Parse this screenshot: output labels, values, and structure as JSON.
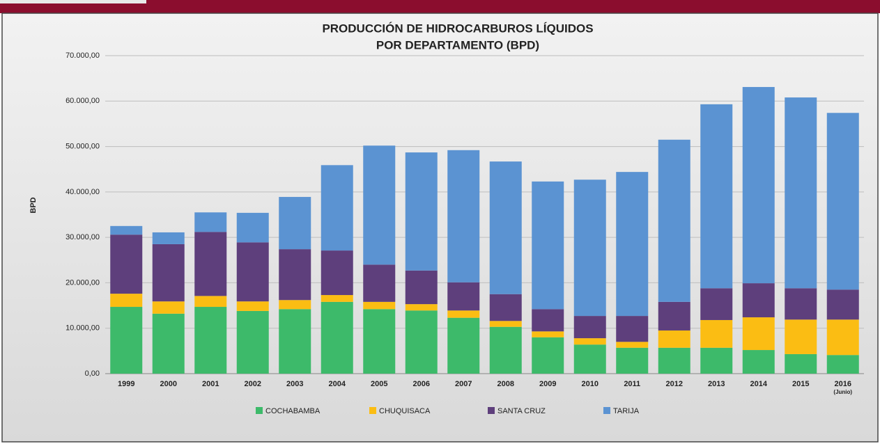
{
  "chart_data": {
    "type": "stacked_bar",
    "title": [
      "PRODUCCIÓN DE HIDROCARBUROS LÍQUIDOS",
      "POR DEPARTAMENTO (BPD)"
    ],
    "y_label": "BPD",
    "categories": [
      "1999",
      "2000",
      "2001",
      "2002",
      "2003",
      "2004",
      "2005",
      "2006",
      "2007",
      "2008",
      "2009",
      "2010",
      "2011",
      "2012",
      "2013",
      "2014",
      "2015",
      "2016\n(Junio)"
    ],
    "series": [
      {
        "name": "COCHABAMBA",
        "color": "#3dba6a",
        "values": [
          14700,
          13200,
          14700,
          13800,
          14200,
          15800,
          14200,
          13900,
          12300,
          10300,
          8000,
          6400,
          5700,
          5700,
          5700,
          5200,
          4300,
          4100
        ]
      },
      {
        "name": "CHUQUISACA",
        "color": "#fbbd13",
        "values": [
          2900,
          2700,
          2400,
          2100,
          2000,
          1500,
          1600,
          1400,
          1600,
          1300,
          1300,
          1400,
          1300,
          3800,
          6100,
          7200,
          7600,
          7800
        ]
      },
      {
        "name": "SANTA CRUZ",
        "color": "#5e3f7c",
        "values": [
          13000,
          12600,
          14100,
          13000,
          11200,
          9800,
          8200,
          7400,
          6200,
          5900,
          4900,
          4900,
          5700,
          6300,
          7000,
          7500,
          6900,
          6600
        ]
      },
      {
        "name": "TARIJA",
        "color": "#5b93d2",
        "values": [
          1900,
          2600,
          4300,
          6500,
          11500,
          18800,
          26200,
          26000,
          29100,
          29200,
          28100,
          30000,
          31700,
          35700,
          40500,
          43200,
          42000,
          38900
        ]
      }
    ],
    "ylim": [
      0,
      70000
    ],
    "yticks": [
      {
        "value": 0,
        "label": "0,00"
      },
      {
        "value": 10000,
        "label": "10.000,00"
      },
      {
        "value": 20000,
        "label": "20.000,00"
      },
      {
        "value": 30000,
        "label": "30.000,00"
      },
      {
        "value": 40000,
        "label": "40.000,00"
      },
      {
        "value": 50000,
        "label": "50.000,00"
      },
      {
        "value": 60000,
        "label": "60.000,00"
      },
      {
        "value": 70000,
        "label": "70.000,00"
      }
    ],
    "grid": true,
    "legend": "bottom"
  }
}
